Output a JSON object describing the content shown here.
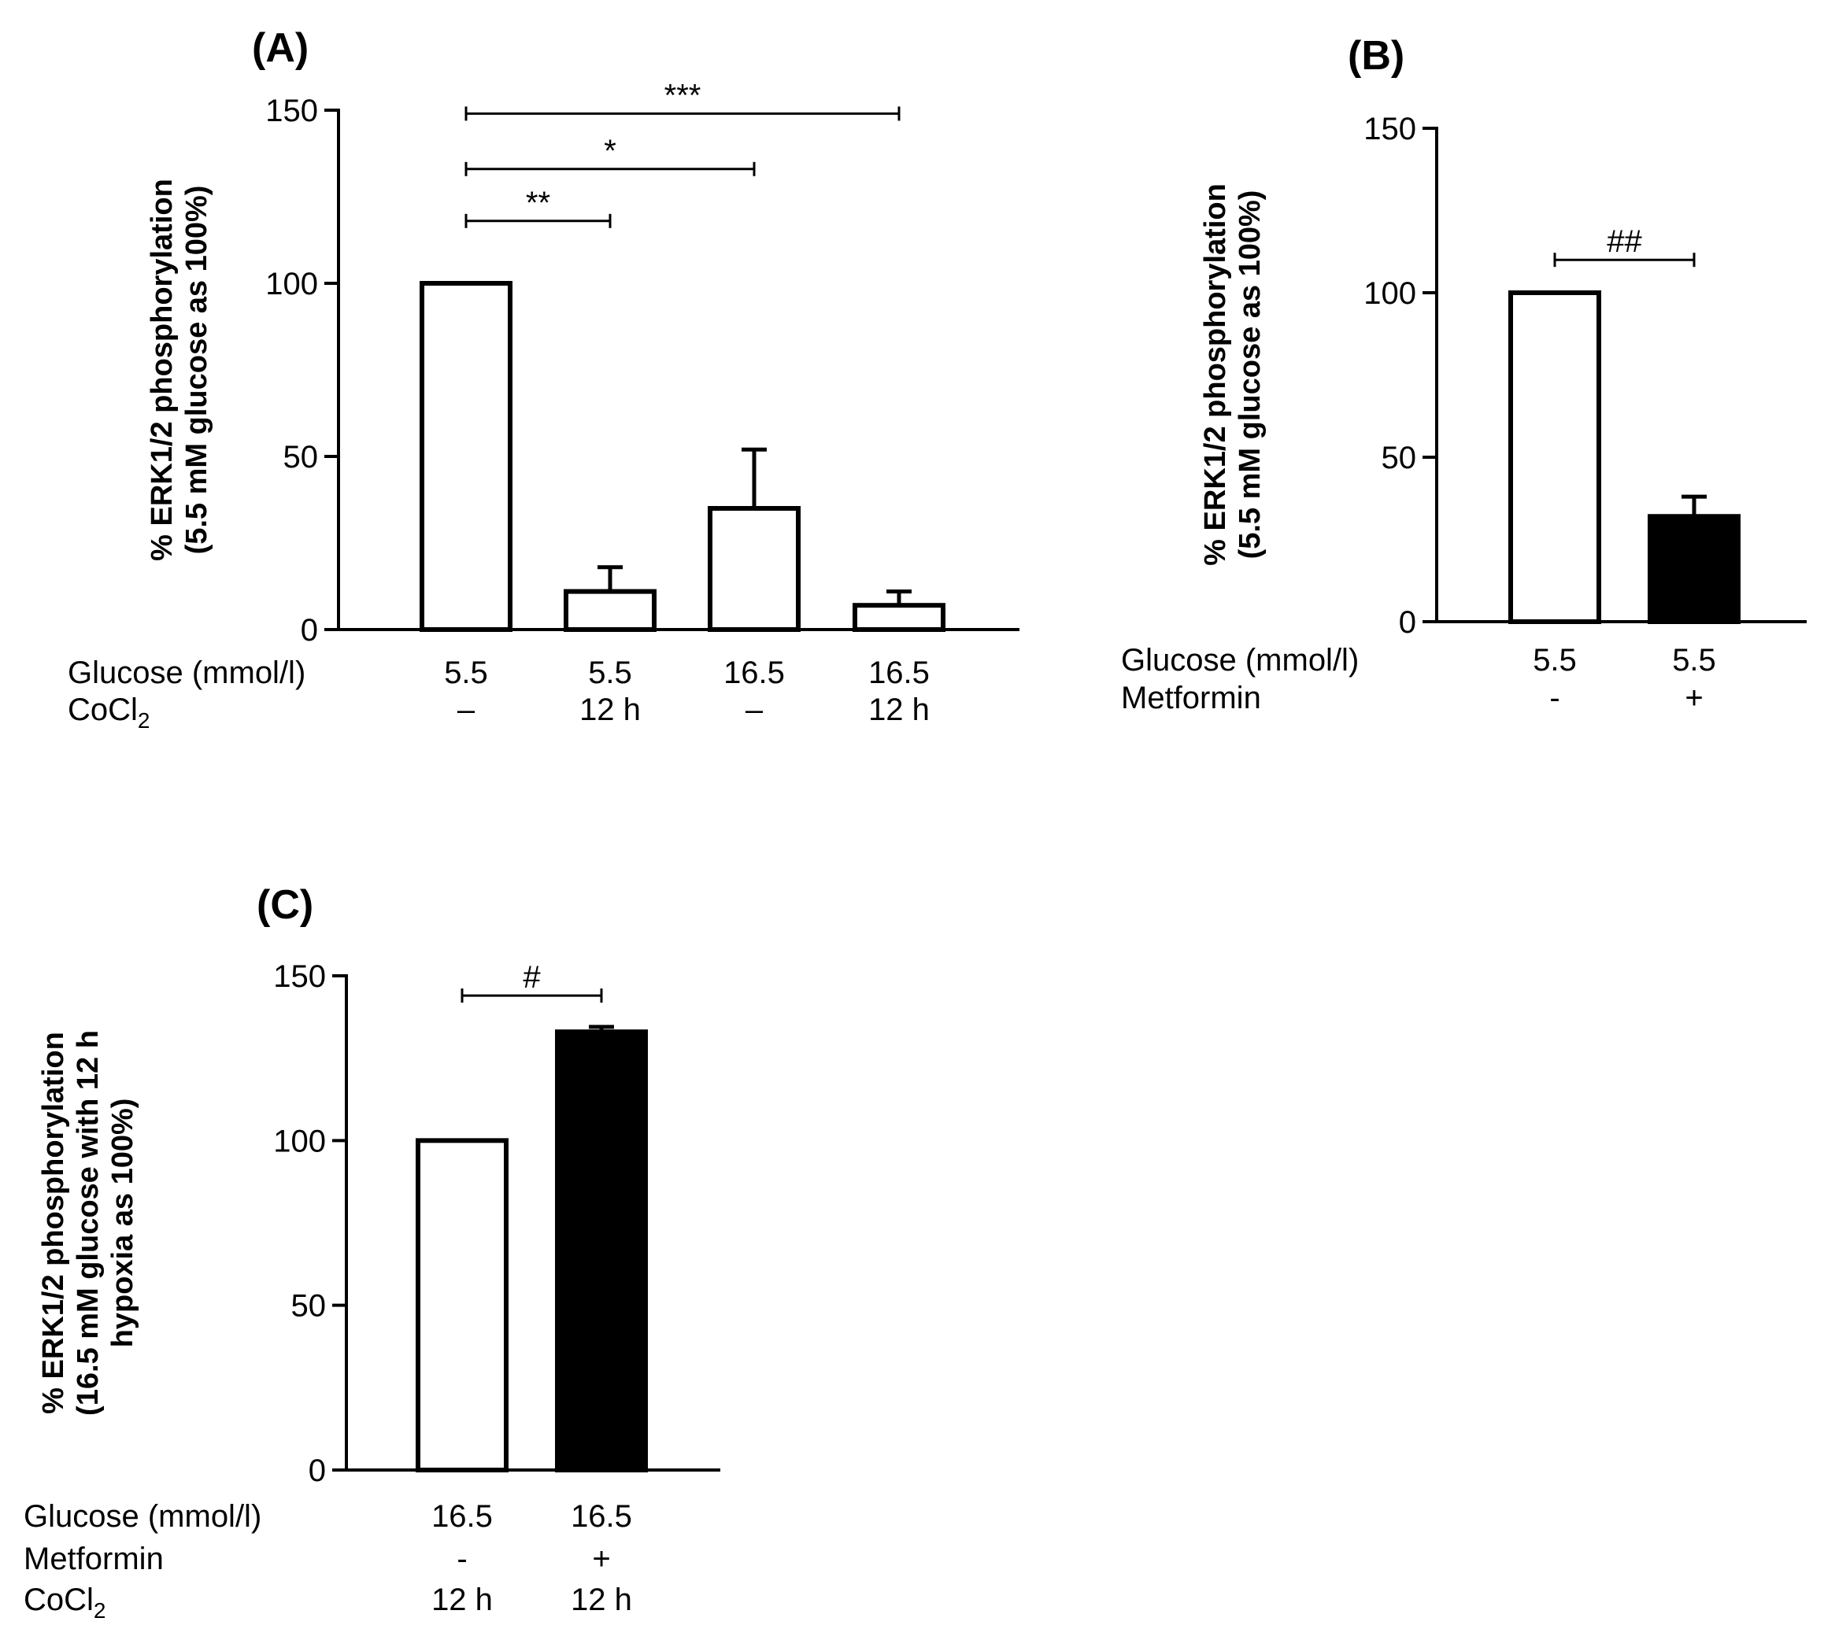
{
  "chart_data": [
    {
      "panel": "(A)",
      "type": "bar",
      "ylabel": [
        "% ERK1/2 phosphorylation",
        "(5.5 mM glucose as 100%)"
      ],
      "ylim": [
        0,
        150
      ],
      "yticks": [
        0,
        50,
        100,
        150
      ],
      "rows": [
        {
          "label": "Glucose (mmol/l)",
          "label_sub": "",
          "values": [
            "5.5",
            "5.5",
            "16.5",
            "16.5"
          ]
        },
        {
          "label": "CoCl",
          "label_sub": "2",
          "values": [
            "–",
            "12 h",
            "–",
            "12 h"
          ]
        }
      ],
      "series": [
        {
          "name": "ERK1/2 phosphorylation",
          "values": [
            100,
            11,
            35,
            7
          ],
          "errors": [
            0,
            7,
            17,
            4
          ],
          "fill": [
            "#ffffff",
            "#ffffff",
            "#ffffff",
            "#ffffff"
          ]
        }
      ],
      "significance": [
        {
          "from": 0,
          "to": 1,
          "y": 118,
          "label": "**"
        },
        {
          "from": 0,
          "to": 2,
          "y": 133,
          "label": "*"
        },
        {
          "from": 0,
          "to": 3,
          "y": 149,
          "label": "***"
        }
      ]
    },
    {
      "panel": "(B)",
      "type": "bar",
      "ylabel": [
        "% ERK1/2 phosphorylation",
        "(5.5 mM glucose as 100%)"
      ],
      "ylim": [
        0,
        150
      ],
      "yticks": [
        0,
        50,
        100,
        150
      ],
      "rows": [
        {
          "label": "Glucose (mmol/l)",
          "label_sub": "",
          "values": [
            "5.5",
            "5.5"
          ]
        },
        {
          "label": "Metformin",
          "label_sub": "",
          "values": [
            "-",
            "+"
          ]
        }
      ],
      "series": [
        {
          "name": "ERK1/2 phosphorylation",
          "values": [
            100,
            32
          ],
          "errors": [
            0,
            6
          ],
          "fill": [
            "#ffffff",
            "#000000"
          ]
        }
      ],
      "significance": [
        {
          "from": 0,
          "to": 1,
          "y": 110,
          "label": "##"
        }
      ]
    },
    {
      "panel": "(C)",
      "type": "bar",
      "ylabel": [
        "% ERK1/2 phosphorylation",
        "(16.5 mM glucose with 12 h",
        "hypoxia as 100%)"
      ],
      "ylim": [
        0,
        150
      ],
      "yticks": [
        0,
        50,
        100,
        150
      ],
      "rows": [
        {
          "label": "Glucose (mmol/l)",
          "label_sub": "",
          "values": [
            "16.5",
            "16.5"
          ]
        },
        {
          "label": "Metformin",
          "label_sub": "",
          "values": [
            "-",
            "+"
          ]
        },
        {
          "label": "CoCl",
          "label_sub": "2",
          "values": [
            "12 h",
            "12 h"
          ]
        }
      ],
      "series": [
        {
          "name": "ERK1/2 phosphorylation",
          "values": [
            100,
            133
          ],
          "errors": [
            0,
            1.5
          ],
          "fill": [
            "#ffffff",
            "#000000"
          ]
        }
      ],
      "significance": [
        {
          "from": 0,
          "to": 1,
          "y": 144,
          "label": "#"
        }
      ]
    }
  ]
}
